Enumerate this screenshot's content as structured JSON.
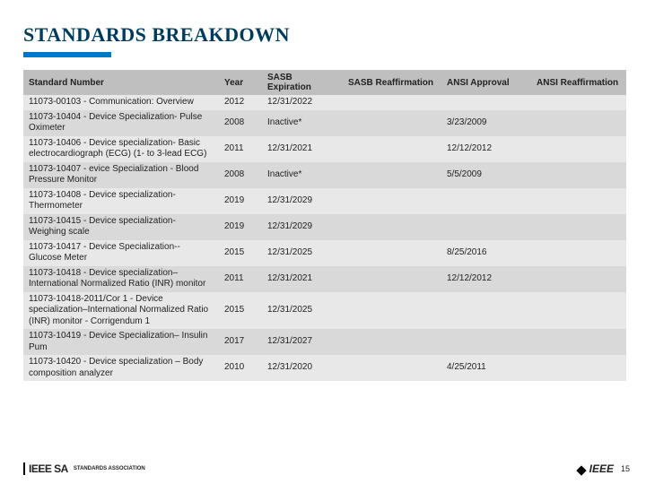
{
  "title": "STANDARDS BREAKDOWN",
  "columns": [
    "Standard Number",
    "Year",
    "SASB Expiration",
    "SASB Reaffirmation",
    "ANSI Approval",
    "ANSI Reaffirmation"
  ],
  "rows": [
    {
      "standard": "11073-00103 - Communication: Overview",
      "year": "2012",
      "exp": "12/31/2022",
      "reaf": "",
      "ansi": "",
      "areaf": ""
    },
    {
      "standard": "11073-10404 - Device Specialization- Pulse Oximeter",
      "year": "2008",
      "exp": "Inactive*",
      "reaf": "",
      "ansi": "3/23/2009",
      "areaf": ""
    },
    {
      "standard": "11073-10406 - Device specialization- Basic electrocardiograph (ECG) (1- to 3-lead ECG)",
      "year": "2011",
      "exp": "12/31/2021",
      "reaf": "",
      "ansi": "12/12/2012",
      "areaf": ""
    },
    {
      "standard": "11073-10407 - evice Specialization - Blood Pressure Monitor",
      "year": "2008",
      "exp": "Inactive*",
      "reaf": "",
      "ansi": "5/5/2009",
      "areaf": ""
    },
    {
      "standard": "11073-10408 - Device specialization- Thermometer",
      "year": "2019",
      "exp": "12/31/2029",
      "reaf": "",
      "ansi": "",
      "areaf": ""
    },
    {
      "standard": "11073-10415 - Device specialization- Weighing scale",
      "year": "2019",
      "exp": "12/31/2029",
      "reaf": "",
      "ansi": "",
      "areaf": ""
    },
    {
      "standard": "11073-10417 - Device Specialization-- Glucose Meter",
      "year": "2015",
      "exp": "12/31/2025",
      "reaf": "",
      "ansi": "8/25/2016",
      "areaf": ""
    },
    {
      "standard": "11073-10418 -  Device specialization– International Normalized Ratio (INR) monitor",
      "year": "2011",
      "exp": "12/31/2021",
      "reaf": "",
      "ansi": "12/12/2012",
      "areaf": ""
    },
    {
      "standard": "11073-10418-2011/Cor 1 - Device specialization–International Normalized Ratio (INR) monitor - Corrigendum 1",
      "year": "2015",
      "exp": "12/31/2025",
      "reaf": "",
      "ansi": "",
      "areaf": ""
    },
    {
      "standard": "11073-10419 - Device Specialization– Insulin Pum",
      "year": "2017",
      "exp": "12/31/2027",
      "reaf": "",
      "ansi": "",
      "areaf": ""
    },
    {
      "standard": "11073-10420 - Device specialization – Body composition analyzer",
      "year": "2010",
      "exp": "12/31/2020",
      "reaf": "",
      "ansi": "4/25/2011",
      "areaf": ""
    }
  ],
  "footer": {
    "sa_brand": "IEEE SA",
    "sa_sub": "STANDARDS\nASSOCIATION",
    "ieee": "IEEE",
    "page": "15"
  },
  "colors": {
    "title": "#003b5c",
    "accent": "#0077c8",
    "header_bg": "#bfbfbf",
    "row_odd": "#e8e8e8",
    "row_even": "#d9d9d9"
  }
}
